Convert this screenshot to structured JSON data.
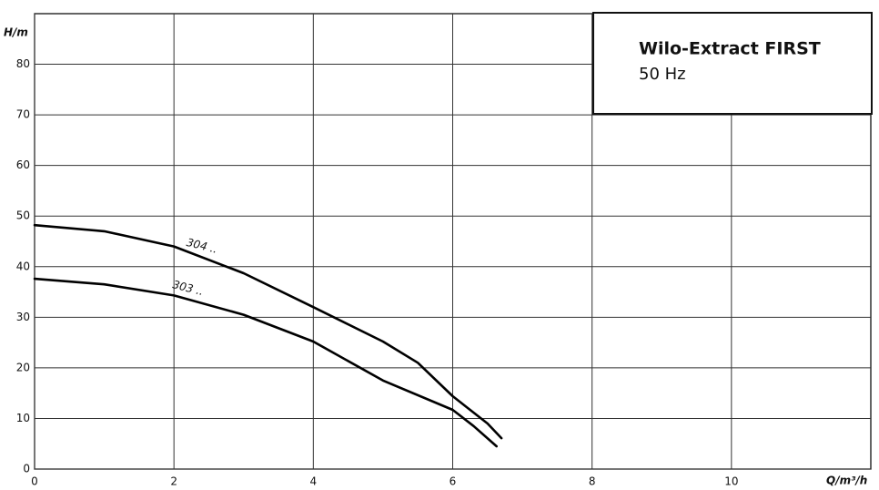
{
  "chart_data": {
    "type": "line",
    "title": "Wilo-Extract FIRST",
    "subtitle": "50 Hz",
    "y_label": "H/m",
    "x_label": "Q/m³/h",
    "xlim": [
      0,
      12
    ],
    "xticks": [
      0,
      2,
      4,
      6,
      8,
      10
    ],
    "ylim": [
      0,
      90
    ],
    "yticks": [
      0,
      10,
      20,
      30,
      40,
      50,
      60,
      70,
      80
    ],
    "grid": true,
    "series": [
      {
        "name": "304 ..",
        "color": "#000000",
        "x": [
          0,
          1,
          2,
          3,
          4,
          5,
          5.5,
          6,
          6.5,
          6.7
        ],
        "values": [
          48.2,
          47,
          44,
          38.7,
          32,
          25.2,
          21,
          14.4,
          9,
          6.1
        ]
      },
      {
        "name": "303 ..",
        "color": "#000000",
        "x": [
          0,
          1,
          2,
          3,
          4,
          5,
          6,
          6.3,
          6.63
        ],
        "values": [
          37.6,
          36.5,
          34.3,
          30.5,
          25.2,
          17.5,
          11.7,
          8.5,
          4.5
        ]
      }
    ]
  }
}
